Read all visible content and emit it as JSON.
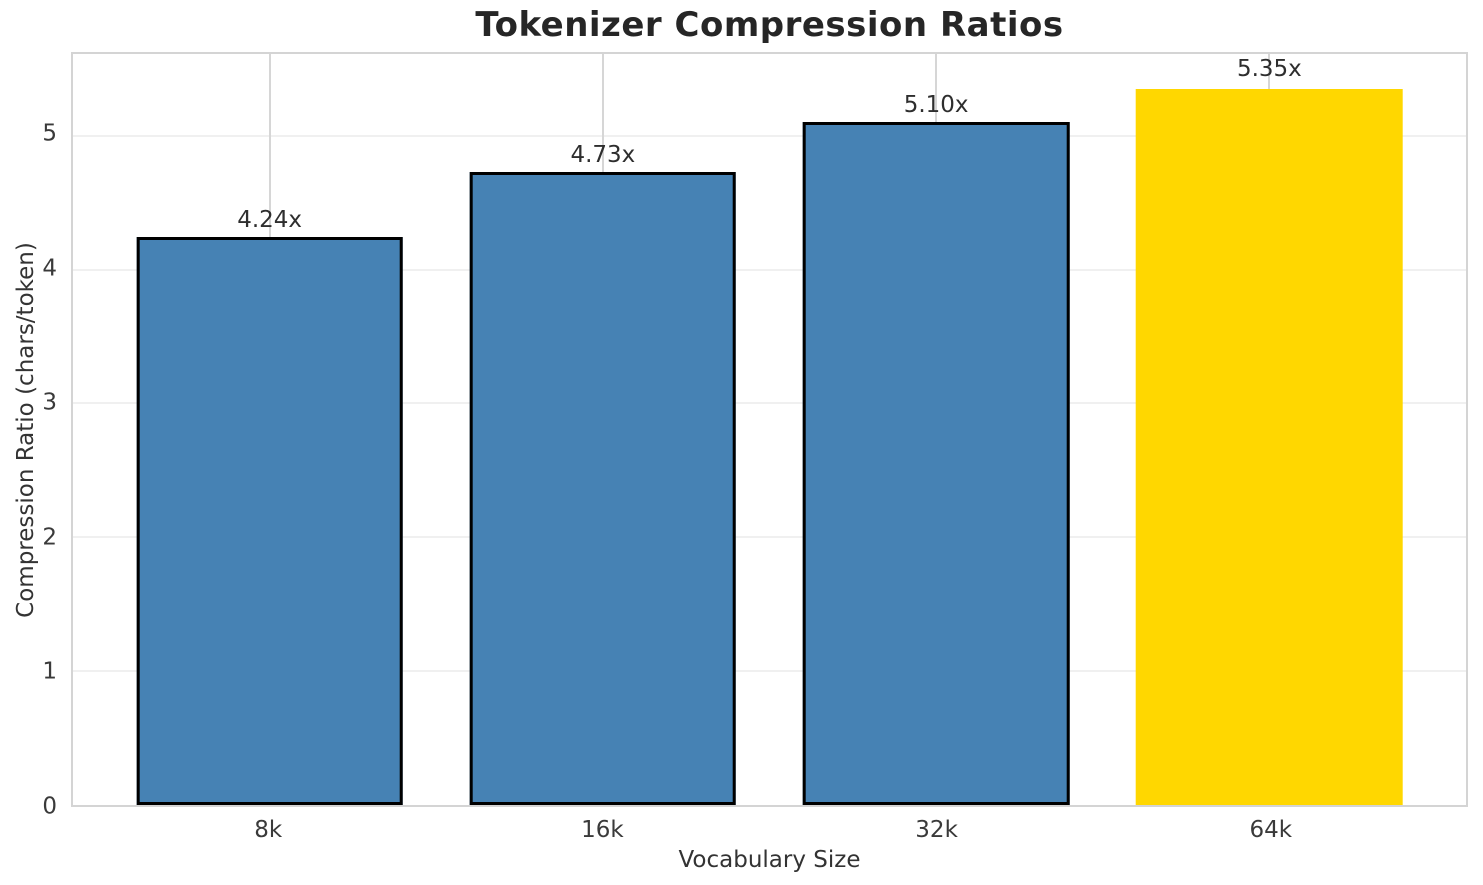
{
  "chart_data": {
    "type": "bar",
    "title": "Tokenizer Compression Ratios",
    "xlabel": "Vocabulary Size",
    "ylabel": "Compression Ratio (chars/token)",
    "categories": [
      "8k",
      "16k",
      "32k",
      "64k"
    ],
    "values": [
      4.24,
      4.73,
      5.1,
      5.35
    ],
    "bar_labels": [
      "4.24x",
      "4.73x",
      "5.10x",
      "5.35x"
    ],
    "bar_colors": [
      "#4682b4",
      "#4682b4",
      "#4682b4",
      "#ffd700"
    ],
    "bar_edge_colors": [
      "#000000",
      "#000000",
      "#000000",
      "none"
    ],
    "yticks": [
      0,
      1,
      2,
      3,
      4,
      5
    ],
    "ylim": [
      0,
      5.61
    ],
    "grid": "both",
    "legend_position": "none",
    "colors": {
      "default_bar": "#4682b4",
      "highlight_bar": "#ffd700",
      "bar_edge": "#000000",
      "spine": "#d4d4d4",
      "hgrid": "#f0f0f0",
      "vgrid": "#d6d6d6",
      "title_text": "#262626",
      "label_text": "#333333"
    }
  }
}
